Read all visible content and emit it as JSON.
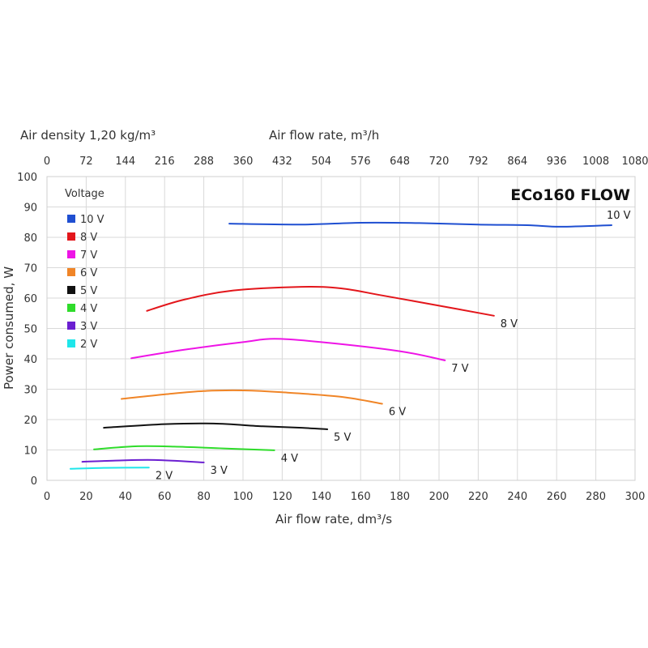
{
  "chart_data": {
    "type": "line",
    "title": "ECo160 FLOW",
    "air_density_label": "Air density 1,20 kg/m³",
    "xlabel": "Air flow rate, dm³/s",
    "ylabel": "Power consumed, W",
    "x2label": "Air flow rate, m³/h",
    "xlim": [
      0,
      300
    ],
    "ylim": [
      0,
      100
    ],
    "x2lim": [
      0,
      1080
    ],
    "x_ticks": [
      "0",
      "20",
      "40",
      "60",
      "80",
      "100",
      "120",
      "140",
      "160",
      "180",
      "200",
      "220",
      "240",
      "260",
      "280",
      "300"
    ],
    "x2_ticks": [
      "0",
      "72",
      "144",
      "216",
      "288",
      "360",
      "432",
      "504",
      "576",
      "648",
      "720",
      "792",
      "864",
      "936",
      "1008",
      "1080"
    ],
    "y_ticks": [
      "0",
      "10",
      "20",
      "30",
      "40",
      "50",
      "60",
      "70",
      "80",
      "90",
      "100"
    ],
    "grid": true,
    "legend_title": "Voltage",
    "legend_position": "top-left",
    "series": [
      {
        "name": "10 V",
        "color": "#1f4fd1",
        "end_label": "10 V",
        "x": [
          93,
          130,
          160,
          190,
          220,
          245,
          262,
          288
        ],
        "y": [
          84.5,
          84.2,
          84.8,
          84.7,
          84.2,
          84.0,
          83.5,
          84.0
        ]
      },
      {
        "name": "8 V",
        "color": "#e3161b",
        "end_label": "8 V",
        "x": [
          51,
          70,
          95,
          130,
          150,
          170,
          200,
          228
        ],
        "y": [
          55.8,
          59.5,
          62.5,
          63.7,
          63.2,
          61.0,
          57.5,
          54.2
        ]
      },
      {
        "name": "7 V",
        "color": "#ee14e6",
        "end_label": "7 V",
        "x": [
          43,
          70,
          100,
          116,
          140,
          180,
          203
        ],
        "y": [
          40.2,
          43.0,
          45.5,
          46.6,
          45.5,
          42.5,
          39.5
        ]
      },
      {
        "name": "6 V",
        "color": "#f08527",
        "end_label": "6 V",
        "x": [
          38,
          60,
          80,
          100,
          120,
          150,
          171
        ],
        "y": [
          26.8,
          28.3,
          29.4,
          29.6,
          29.0,
          27.5,
          25.2
        ]
      },
      {
        "name": "5 V",
        "color": "#111111",
        "end_label": "5 V",
        "x": [
          29,
          60,
          85,
          110,
          130,
          143
        ],
        "y": [
          17.3,
          18.5,
          18.7,
          17.8,
          17.3,
          16.8
        ]
      },
      {
        "name": "4 V",
        "color": "#2fdc2b",
        "end_label": "4 V",
        "x": [
          24,
          45,
          65,
          90,
          116
        ],
        "y": [
          10.2,
          11.2,
          11.1,
          10.5,
          9.9
        ]
      },
      {
        "name": "3 V",
        "color": "#6b1fd1",
        "end_label": "3 V",
        "x": [
          18,
          35,
          55,
          80
        ],
        "y": [
          6.1,
          6.5,
          6.7,
          5.9
        ]
      },
      {
        "name": "2 V",
        "color": "#1fe6ea",
        "end_label": "2 V",
        "x": [
          12,
          30,
          52
        ],
        "y": [
          3.8,
          4.1,
          4.2
        ]
      }
    ]
  }
}
